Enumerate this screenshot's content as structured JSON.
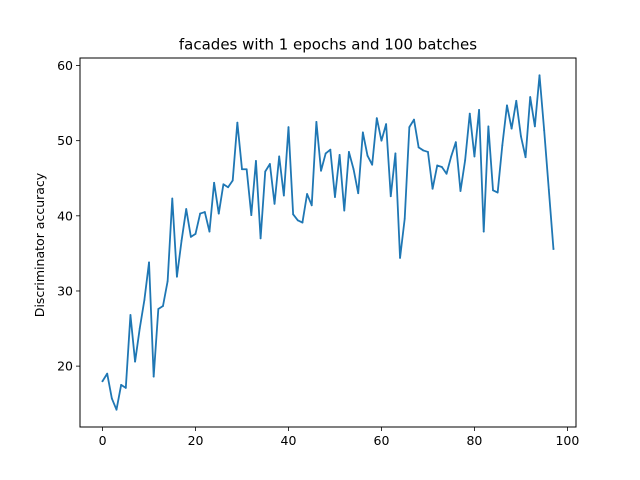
{
  "chart_data": {
    "type": "line",
    "title": "facades with 1 epochs and 100 batches",
    "xlabel": "",
    "ylabel": "Discriminator accuracy",
    "xlim": [
      -4.85,
      101.85
    ],
    "ylim": [
      11.9,
      61.0
    ],
    "xticks": [
      0,
      20,
      40,
      60,
      80,
      100
    ],
    "yticks": [
      20,
      30,
      40,
      50,
      60
    ],
    "grid": false,
    "line_color": "#1f77b4",
    "series": [
      {
        "x": [
          0,
          1,
          2,
          3,
          4,
          5,
          6,
          7,
          8,
          9,
          10,
          11,
          12,
          13,
          14,
          15,
          16,
          17,
          18,
          19,
          20,
          21,
          22,
          23,
          24,
          25,
          26,
          27,
          28,
          29,
          30,
          31,
          32,
          33,
          34,
          35,
          36,
          37,
          38,
          39,
          40,
          41,
          42,
          43,
          44,
          45,
          46,
          47,
          48,
          49,
          50,
          51,
          52,
          53,
          54,
          55,
          56,
          57,
          58,
          59,
          60,
          61,
          62,
          63,
          64,
          65,
          66,
          67,
          68,
          69,
          70,
          71,
          72,
          73,
          74,
          75,
          76,
          77,
          78,
          79,
          80,
          81,
          82,
          83,
          84,
          85,
          86,
          87,
          88,
          89,
          90,
          91,
          92,
          93,
          94,
          95,
          96,
          97
        ],
        "values": [
          18.0,
          19.0,
          15.7,
          14.2,
          17.5,
          17.1,
          26.8,
          20.6,
          25.0,
          28.8,
          33.8,
          18.6,
          27.6,
          28.0,
          31.3,
          42.3,
          31.9,
          36.7,
          40.9,
          37.2,
          37.6,
          40.3,
          40.5,
          37.9,
          44.4,
          40.3,
          44.2,
          43.8,
          44.7,
          52.4,
          46.2,
          46.2,
          40.1,
          47.3,
          37.0,
          45.9,
          46.9,
          41.6,
          47.9,
          42.7,
          51.8,
          40.2,
          39.4,
          39.1,
          42.9,
          41.4,
          52.5,
          46.0,
          48.3,
          48.8,
          42.5,
          48.1,
          40.7,
          48.5,
          46.2,
          43.0,
          51.1,
          48.0,
          46.8,
          53.0,
          50.0,
          52.2,
          42.6,
          48.3,
          34.4,
          39.6,
          51.8,
          52.8,
          49.1,
          48.7,
          48.5,
          43.6,
          46.7,
          46.5,
          45.6,
          47.9,
          49.8,
          43.3,
          47.4,
          53.6,
          47.9,
          54.1,
          37.9,
          51.9,
          43.4,
          43.1,
          49.4,
          54.7,
          51.6,
          55.3,
          50.6,
          47.8,
          55.8,
          51.9,
          58.7,
          51.4,
          43.5,
          35.6
        ]
      }
    ]
  }
}
